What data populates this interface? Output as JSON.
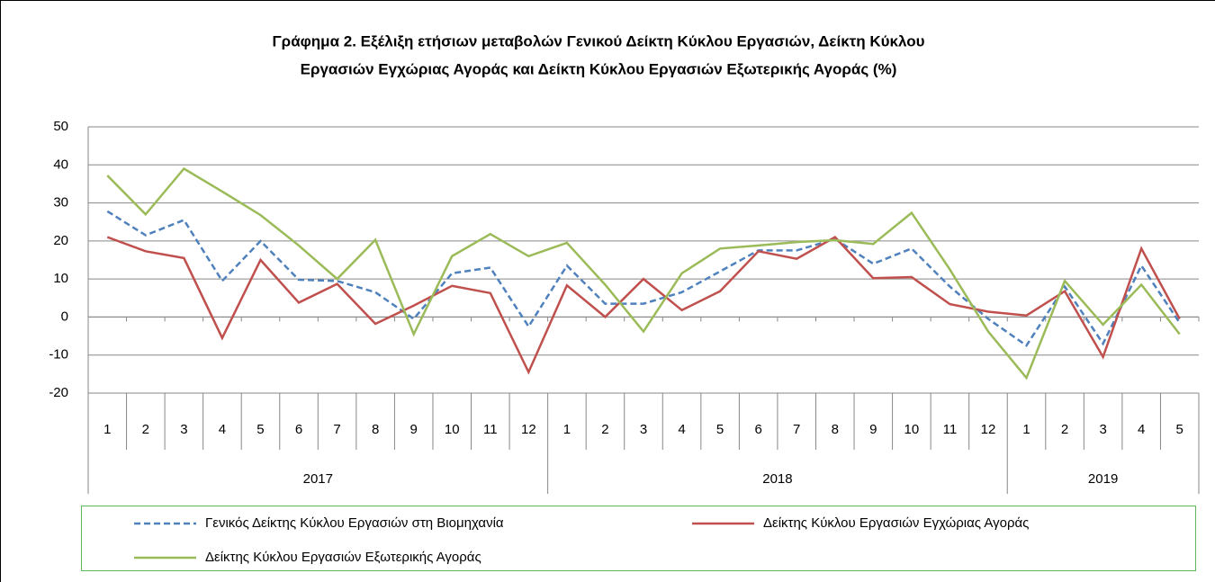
{
  "chart_data": {
    "type": "line",
    "title": [
      "Γράφημα 2. Εξέλιξη ετήσιων μεταβολών Γενικού Δείκτη Κύκλου Εργασιών,  Δείκτη Κύκλου",
      "Εργασιών Εγχώριας Αγοράς και Δείκτη Κύκλου Εργασιών Εξωτερικής Αγοράς   (%)"
    ],
    "groups": [
      {
        "label": "2017",
        "categories": [
          "1",
          "2",
          "3",
          "4",
          "5",
          "6",
          "7",
          "8",
          "9",
          "10",
          "11",
          "12"
        ]
      },
      {
        "label": "2018",
        "categories": [
          "1",
          "2",
          "3",
          "4",
          "5",
          "6",
          "7",
          "8",
          "9",
          "10",
          "11",
          "12"
        ]
      },
      {
        "label": "2019",
        "categories": [
          "1",
          "2",
          "3",
          "4",
          "5"
        ]
      }
    ],
    "series": [
      {
        "name": "Γενικός Δείκτης Κύκλου Εργασιών στη Βιομηχανία",
        "color": "#4f81bd",
        "dashed": true,
        "values": [
          27.8,
          21.5,
          25.5,
          9.5,
          20,
          9.8,
          9.5,
          6.5,
          -0.5,
          11.5,
          13,
          -2.5,
          13.5,
          3.5,
          3.5,
          6.5,
          12,
          17.5,
          17.5,
          20.5,
          14,
          18,
          8,
          -0.5,
          -7.5,
          8,
          -7,
          13.5,
          -1.5
        ]
      },
      {
        "name": "Δείκτης Κύκλου Εργασιών Εγχώριας Αγοράς",
        "color": "#c0504d",
        "dashed": false,
        "values": [
          21,
          17.3,
          15.5,
          -5.5,
          15,
          3.8,
          8.7,
          -1.8,
          3,
          8.2,
          6.3,
          -14.5,
          8.3,
          0,
          10,
          1.8,
          6.8,
          17.3,
          15.3,
          21,
          10.2,
          10.5,
          3.4,
          1.4,
          0.4,
          6.8,
          -10.5,
          18,
          -0.5
        ]
      },
      {
        "name": "Δείκτης Κύκλου Εργασιών Εξωτερικής Αγοράς",
        "color": "#9bbb59",
        "dashed": false,
        "values": [
          37.2,
          27,
          39,
          33,
          26.8,
          18.8,
          10,
          20.3,
          -4.5,
          16,
          21.8,
          16,
          19.5,
          8.5,
          -3.8,
          11.5,
          18,
          18.8,
          19.7,
          20.2,
          19.2,
          27.4,
          12.5,
          -3.8,
          -16,
          9.5,
          -2,
          8.5,
          -4.5
        ]
      }
    ],
    "ylim": [
      -20,
      50
    ],
    "yticks": [
      -20,
      -10,
      0,
      10,
      20,
      30,
      40,
      50
    ],
    "grid": true
  }
}
